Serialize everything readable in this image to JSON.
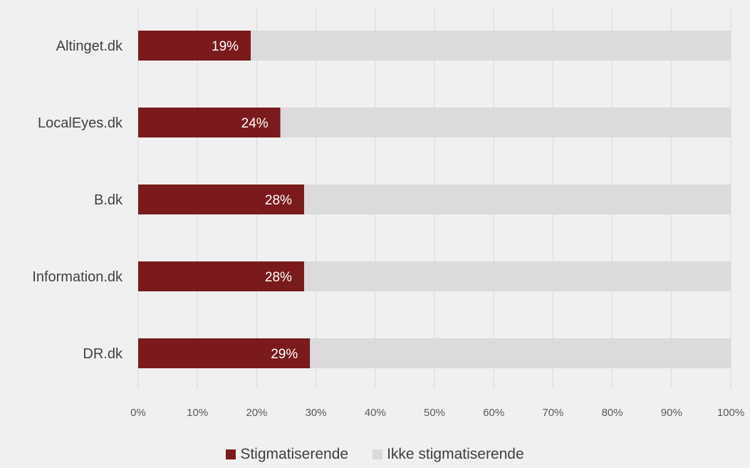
{
  "chart_data": {
    "type": "bar",
    "orientation": "horizontal",
    "stacked": true,
    "categories": [
      "Altinget.dk",
      "LocalEyes.dk",
      "B.dk",
      "Information.dk",
      "DR.dk"
    ],
    "series": [
      {
        "name": "Stigmatiserende",
        "values": [
          19,
          24,
          28,
          28,
          29
        ],
        "labels": [
          "19%",
          "24%",
          "28%",
          "28%",
          "29%"
        ],
        "color": "#7a1a1c"
      },
      {
        "name": "Ikke stigmatiserende",
        "values": [
          81,
          76,
          72,
          72,
          71
        ],
        "color": "#dcdadc"
      }
    ],
    "xlim": [
      0,
      100
    ],
    "xticks": [
      "0%",
      "10%",
      "20%",
      "30%",
      "40%",
      "50%",
      "60%",
      "70%",
      "80%",
      "90%",
      "100%"
    ],
    "grid": true,
    "legend_position": "bottom"
  },
  "colors": {
    "background": "#f1f0f0",
    "grid": "#d9d9d9",
    "axis_text": "#595959",
    "category_text": "#404040",
    "bar_label": "#ffffff"
  }
}
